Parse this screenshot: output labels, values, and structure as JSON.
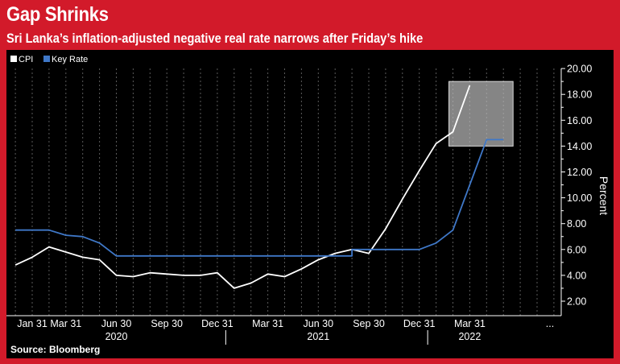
{
  "header": {
    "title": "Gap Shrinks",
    "subtitle": "Sri Lanka’s inflation-adjusted negative real rate narrows after Friday’s hike"
  },
  "footer": {
    "source": "Source: Bloomberg"
  },
  "colors": {
    "frame": "#d21a2a",
    "background": "#000000",
    "cpi": "#ffffff",
    "key_rate": "#3f78c8",
    "highlight": "#b9b9b9"
  },
  "chart_data": {
    "type": "line",
    "xlabel": "",
    "ylabel": "Percent",
    "ylim": [
      1.5,
      20.0
    ],
    "y_ticks": [
      "2.00",
      "4.00",
      "6.00",
      "8.00",
      "10.00",
      "12.00",
      "14.00",
      "16.00",
      "18.00",
      "20.00"
    ],
    "y_axis_position": "right",
    "x_ticks": [
      "Jan 31",
      "Mar 31",
      "Jun 30",
      "Sep 30",
      "Dec 31",
      "Mar 31",
      "Jun 30",
      "Sep 30",
      "Dec 31",
      "Mar 31",
      "..."
    ],
    "x_years": [
      "2020",
      "2021",
      "2022"
    ],
    "grid": "vertical dashed",
    "legend": "top-left",
    "highlight_box": {
      "x_from": "2022-02",
      "x_to": "2022-05",
      "y_from": 14.0,
      "y_to": 19.0
    },
    "series": [
      {
        "name": "CPI",
        "color": "#ffffff",
        "points": [
          [
            "2019-12",
            4.8
          ],
          [
            "2020-01",
            5.4
          ],
          [
            "2020-02",
            6.2
          ],
          [
            "2020-03",
            5.8
          ],
          [
            "2020-04",
            5.4
          ],
          [
            "2020-05",
            5.2
          ],
          [
            "2020-06",
            4.0
          ],
          [
            "2020-07",
            3.9
          ],
          [
            "2020-08",
            4.2
          ],
          [
            "2020-09",
            4.1
          ],
          [
            "2020-10",
            4.0
          ],
          [
            "2020-11",
            4.0
          ],
          [
            "2020-12",
            4.2
          ],
          [
            "2021-01",
            3.0
          ],
          [
            "2021-02",
            3.4
          ],
          [
            "2021-03",
            4.1
          ],
          [
            "2021-04",
            3.9
          ],
          [
            "2021-05",
            4.5
          ],
          [
            "2021-06",
            5.2
          ],
          [
            "2021-07",
            5.7
          ],
          [
            "2021-08",
            6.0
          ],
          [
            "2021-09",
            5.7
          ],
          [
            "2021-10",
            7.6
          ],
          [
            "2021-11",
            9.9
          ],
          [
            "2021-12",
            12.1
          ],
          [
            "2022-01",
            14.2
          ],
          [
            "2022-02",
            15.1
          ],
          [
            "2022-03",
            18.7
          ]
        ]
      },
      {
        "name": "Key Rate",
        "color": "#3f78c8",
        "points": [
          [
            "2019-12",
            7.5
          ],
          [
            "2020-02",
            7.5
          ],
          [
            "2020-03",
            7.1
          ],
          [
            "2020-04",
            7.0
          ],
          [
            "2020-05",
            6.5
          ],
          [
            "2020-06",
            5.5
          ],
          [
            "2021-08",
            5.5
          ],
          [
            "2021-08",
            6.0
          ],
          [
            "2021-12",
            6.0
          ],
          [
            "2022-01",
            6.5
          ],
          [
            "2022-02",
            7.5
          ],
          [
            "2022-04",
            14.5
          ],
          [
            "2022-05",
            14.5
          ]
        ]
      }
    ]
  }
}
